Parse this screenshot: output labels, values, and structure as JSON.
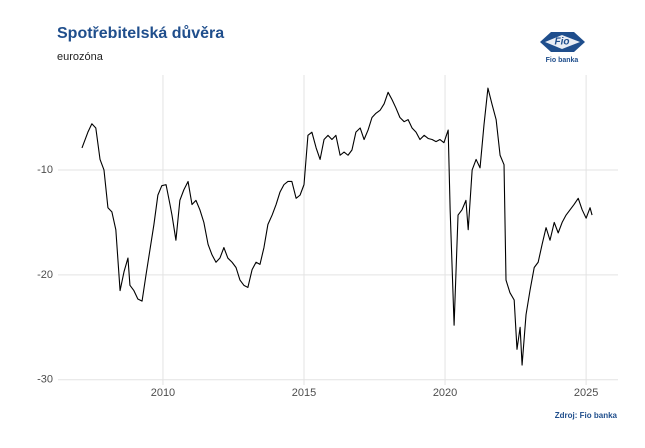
{
  "chart_data": {
    "type": "line",
    "title": "Spotřebitelská důvěra",
    "subtitle": "eurozóna",
    "source": "Zdroj: Fio banka",
    "logo": {
      "mark": "Fio",
      "name": "Fio banka"
    },
    "color": "#000000",
    "grid": true,
    "xlim": [
      2006.28,
      2026.13
    ],
    "xticks": [
      2010,
      2015,
      2020,
      2025
    ],
    "ylim": [
      -30.5,
      -0.95
    ],
    "yticks": [
      -10,
      -20,
      -30
    ],
    "x": [
      2007.13,
      2007.34,
      2007.48,
      2007.62,
      2007.77,
      2007.91,
      2008.05,
      2008.19,
      2008.33,
      2008.48,
      2008.62,
      2008.76,
      2008.83,
      2008.97,
      2009.11,
      2009.26,
      2009.4,
      2009.54,
      2009.68,
      2009.82,
      2009.96,
      2010.11,
      2010.25,
      2010.32,
      2010.39,
      2010.46,
      2010.6,
      2010.74,
      2010.89,
      2011.03,
      2011.17,
      2011.31,
      2011.45,
      2011.6,
      2011.74,
      2011.88,
      2012.02,
      2012.16,
      2012.3,
      2012.45,
      2012.59,
      2012.73,
      2012.87,
      2013.01,
      2013.16,
      2013.3,
      2013.44,
      2013.58,
      2013.72,
      2013.87,
      2014.01,
      2014.15,
      2014.29,
      2014.43,
      2014.57,
      2014.72,
      2014.86,
      2015.0,
      2015.14,
      2015.28,
      2015.43,
      2015.57,
      2015.71,
      2015.85,
      2015.99,
      2016.13,
      2016.28,
      2016.42,
      2016.56,
      2016.7,
      2016.84,
      2016.99,
      2017.13,
      2017.27,
      2017.41,
      2017.55,
      2017.7,
      2017.84,
      2017.98,
      2018.12,
      2018.26,
      2018.4,
      2018.55,
      2018.69,
      2018.83,
      2018.97,
      2019.11,
      2019.26,
      2019.4,
      2019.54,
      2019.68,
      2019.82,
      2019.96,
      2020.11,
      2020.18,
      2020.32,
      2020.46,
      2020.6,
      2020.74,
      2020.82,
      2020.96,
      2021.1,
      2021.24,
      2021.38,
      2021.52,
      2021.67,
      2021.81,
      2021.95,
      2022.09,
      2022.16,
      2022.3,
      2022.45,
      2022.55,
      2022.66,
      2022.73,
      2022.87,
      2023.01,
      2023.16,
      2023.3,
      2023.44,
      2023.58,
      2023.72,
      2023.87,
      2024.01,
      2024.15,
      2024.29,
      2024.43,
      2024.57,
      2024.72,
      2024.86,
      2025.0,
      2025.14,
      2025.21
    ],
    "values": [
      -7.9,
      -6.4,
      -5.6,
      -6,
      -9,
      -10,
      -13.6,
      -14,
      -15.7,
      -21.5,
      -19.7,
      -18.4,
      -21,
      -21.5,
      -22.3,
      -22.5,
      -20,
      -17.6,
      -15.2,
      -12.4,
      -11.5,
      -11.4,
      -13.3,
      -14.3,
      -15.5,
      -16.7,
      -12.9,
      -11.9,
      -11.1,
      -13.3,
      -12.9,
      -13.8,
      -15,
      -17.1,
      -18.1,
      -18.8,
      -18.4,
      -17.4,
      -18.4,
      -18.8,
      -19.3,
      -20.5,
      -21,
      -21.2,
      -19.5,
      -18.8,
      -19,
      -17.4,
      -15.2,
      -14.3,
      -13.3,
      -12.1,
      -11.4,
      -11.1,
      -11.1,
      -12.7,
      -12.4,
      -11.4,
      -6.7,
      -6.4,
      -7.9,
      -9,
      -7.1,
      -6.7,
      -7.1,
      -6.7,
      -8.6,
      -8.3,
      -8.6,
      -8.1,
      -6.4,
      -6,
      -7.1,
      -6.2,
      -5,
      -4.6,
      -4.3,
      -3.7,
      -2.6,
      -3.3,
      -4.1,
      -5,
      -5.4,
      -5.2,
      -6,
      -6.4,
      -7.1,
      -6.7,
      -7,
      -7.1,
      -7.3,
      -7.1,
      -7.4,
      -6.2,
      -13.8,
      -24.8,
      -14.3,
      -13.8,
      -12.9,
      -15.7,
      -10,
      -9,
      -9.8,
      -5.7,
      -2.2,
      -3.8,
      -5.2,
      -8.6,
      -9.5,
      -20.5,
      -21.7,
      -22.4,
      -27.1,
      -25,
      -28.6,
      -23.8,
      -21.5,
      -19.3,
      -18.8,
      -17.1,
      -15.5,
      -16.7,
      -15,
      -16,
      -15,
      -14.3,
      -13.8,
      -13.3,
      -12.7,
      -13.8,
      -14.6,
      -13.6,
      -14.3
    ]
  }
}
